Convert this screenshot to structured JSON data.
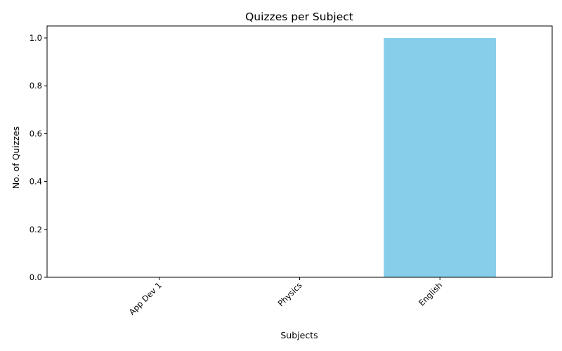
{
  "chart_data": {
    "type": "bar",
    "title": "Quizzes per Subject",
    "xlabel": "Subjects",
    "ylabel": "No. of Quizzes",
    "categories": [
      "App Dev 1",
      "Physics",
      "English"
    ],
    "values": [
      0,
      0,
      1
    ],
    "ylim": [
      0,
      1.05
    ],
    "yticks": [
      "0.0",
      "0.2",
      "0.4",
      "0.6",
      "0.8",
      "1.0"
    ],
    "bar_color": "#87ceeb",
    "xtick_rotation": 45,
    "grid": false,
    "legend": false
  }
}
